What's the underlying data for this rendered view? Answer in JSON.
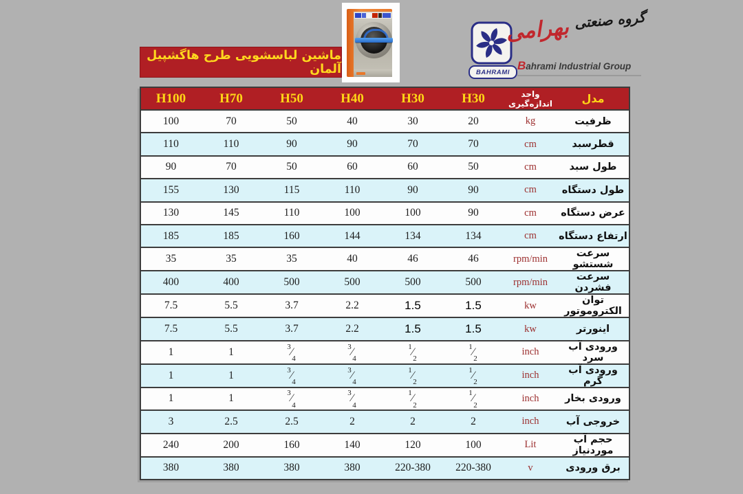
{
  "brand": {
    "logo_text": "BAHRAMI",
    "name_fa_black": "گروه صنعتی",
    "name_fa_red": "بهرامی",
    "name_en_initial": "B",
    "name_en_rest": "ahrami Industrial Group",
    "colors": {
      "navy": "#2a2e86",
      "red": "#c1272d"
    }
  },
  "title": "ماشین لباسشویی طرح هاگشپیل آلمان",
  "table": {
    "model_header": "مدل",
    "unit_header": "واحد اندازه‌گیری",
    "models": [
      "H100",
      "H70",
      "H50",
      "H40",
      "H30",
      "H30"
    ],
    "rows": [
      {
        "label": "ظرفیت",
        "unit": "kg",
        "values": [
          "100",
          "70",
          "50",
          "40",
          "30",
          "20"
        ]
      },
      {
        "label": "قطرسبد",
        "unit": "cm",
        "values": [
          "110",
          "110",
          "90",
          "90",
          "70",
          "70"
        ]
      },
      {
        "label": "طول سبد",
        "unit": "cm",
        "values": [
          "90",
          "70",
          "50",
          "60",
          "60",
          "50"
        ]
      },
      {
        "label": "طول دستگاه",
        "unit": "cm",
        "values": [
          "155",
          "130",
          "115",
          "110",
          "90",
          "90"
        ]
      },
      {
        "label": "عرض دستگاه",
        "unit": "cm",
        "values": [
          "130",
          "145",
          "110",
          "100",
          "100",
          "90"
        ]
      },
      {
        "label": "ارتفاع دستگاه",
        "unit": "cm",
        "values": [
          "185",
          "185",
          "160",
          "144",
          "134",
          "134"
        ]
      },
      {
        "label": "سرعت شستشو",
        "unit": "rpm/min",
        "values": [
          "35",
          "35",
          "35",
          "40",
          "46",
          "46"
        ]
      },
      {
        "label": "سرعت فشردن",
        "unit": "rpm/min",
        "values": [
          "400",
          "400",
          "500",
          "500",
          "500",
          "500"
        ]
      },
      {
        "label": "توان الکتروموتور",
        "unit": "kw",
        "values": [
          "7.5",
          "5.5",
          "3.7",
          "2.2",
          "1.5",
          "1.5"
        ]
      },
      {
        "label": "اینورتر",
        "unit": "kw",
        "values": [
          "7.5",
          "5.5",
          "3.7",
          "2.2",
          "1.5",
          "1.5"
        ]
      },
      {
        "label": "ورودی آب سرد",
        "unit": "inch",
        "values": [
          "1",
          "1",
          "3/4",
          "3/4",
          "1/2",
          "1/2"
        ]
      },
      {
        "label": "ورودی آب گرم",
        "unit": "inch",
        "values": [
          "1",
          "1",
          "3/4",
          "3/4",
          "1/2",
          "1/2"
        ]
      },
      {
        "label": "ورودی بخار",
        "unit": "inch",
        "values": [
          "1",
          "1",
          "3/4",
          "3/4",
          "1/2",
          "1/2"
        ]
      },
      {
        "label": "خروجی آب",
        "unit": "inch",
        "values": [
          "3",
          "2.5",
          "2.5",
          "2",
          "2",
          "2"
        ]
      },
      {
        "label": "حجم آب موردنیاز",
        "unit": "Lit",
        "values": [
          "240",
          "200",
          "160",
          "140",
          "120",
          "100"
        ]
      },
      {
        "label": "برق ورودی",
        "unit": "v",
        "values": [
          "380",
          "380",
          "380",
          "380",
          "220-380",
          "220-380"
        ]
      }
    ],
    "colors": {
      "header_bg": "#b01f24",
      "model_text": "#ffd616",
      "alt_row_bg": "#daf3f9",
      "unit_text": "#9c2f2f"
    }
  }
}
